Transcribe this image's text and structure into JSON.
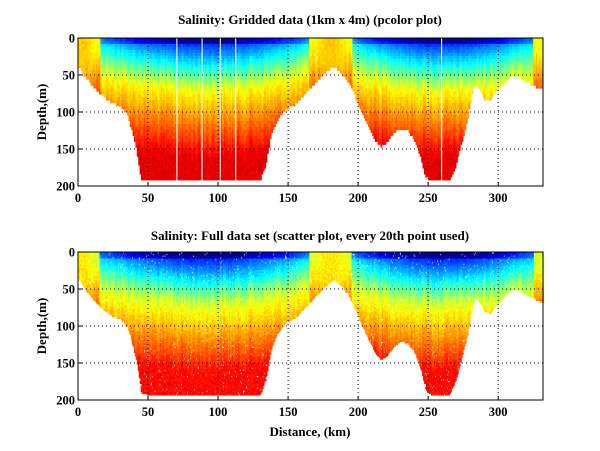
{
  "chart_data": [
    {
      "type": "heatmap",
      "title": "Salinity: Gridded data (1km x 4m) (pcolor plot)",
      "xlabel": "",
      "ylabel": "Depth,(m)",
      "xlim": [
        0,
        332
      ],
      "ylim": [
        200,
        0
      ],
      "xticks": [
        "0",
        "50",
        "100",
        "150",
        "200",
        "250",
        "300"
      ],
      "yticks": [
        "0",
        "50",
        "100",
        "150",
        "200"
      ],
      "grid": true,
      "colormap": "jet",
      "render": "cells"
    },
    {
      "type": "scatter",
      "title": "Salinity: Full data set (scatter plot, every 20th point used)",
      "xlabel": "Distance, (km)",
      "ylabel": "Depth,(m)",
      "xlim": [
        0,
        332
      ],
      "ylim": [
        200,
        0
      ],
      "xticks": [
        "0",
        "50",
        "100",
        "150",
        "200",
        "250",
        "300"
      ],
      "yticks": [
        "0",
        "50",
        "100",
        "150",
        "200"
      ],
      "grid": true,
      "colormap": "jet",
      "render": "dots"
    }
  ],
  "bottom_profile": {
    "distance_km": [
      0,
      5,
      10,
      15,
      20,
      25,
      30,
      35,
      38,
      42,
      45,
      50,
      60,
      90,
      120,
      130,
      134,
      138,
      142,
      148,
      155,
      160,
      165,
      170,
      175,
      180,
      183,
      188,
      193,
      198,
      203,
      208,
      212,
      216,
      220,
      225,
      230,
      235,
      240,
      245,
      248,
      252,
      265,
      270,
      274,
      278,
      281,
      283,
      286,
      290,
      294,
      298,
      303,
      308,
      313,
      318,
      323,
      328,
      332
    ],
    "depth_m": [
      35,
      50,
      62,
      72,
      80,
      87,
      90,
      100,
      120,
      150,
      190,
      192,
      192,
      192,
      192,
      192,
      170,
      130,
      110,
      95,
      88,
      78,
      68,
      58,
      48,
      40,
      37,
      45,
      58,
      78,
      100,
      120,
      135,
      145,
      140,
      128,
      120,
      122,
      135,
      160,
      185,
      192,
      192,
      170,
      140,
      110,
      80,
      60,
      65,
      80,
      82,
      72,
      62,
      52,
      48,
      55,
      60,
      65,
      68
    ]
  },
  "colors": {
    "fresh": "#00008f",
    "mid": "#7fff7f",
    "salty": "#800000"
  }
}
